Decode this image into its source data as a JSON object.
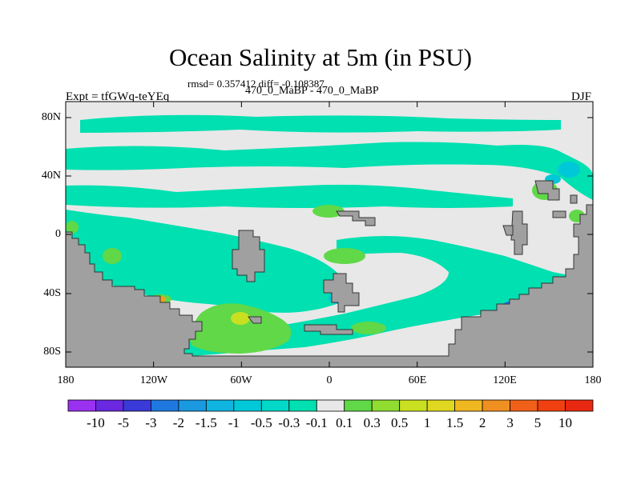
{
  "title": "Ocean Salinity at 5m (in PSU)",
  "rmsd_line": "rmsd= 0.357412 diff= -0.108387",
  "left_label": "Expt = tfGWq-teYEq",
  "center_label": "470_0_MaBP - 470_0_MaBP",
  "right_label": "DJF",
  "map": {
    "lon_ticks": [
      "180",
      "120W",
      "60W",
      "0",
      "60E",
      "120E",
      "180"
    ],
    "lat_ticks": [
      "80N",
      "40N",
      "0",
      "40S",
      "80S"
    ],
    "colors": {
      "land": "#a0a0a0",
      "near_zero": "#e8e8e8",
      "neg_small": "#00e0b0",
      "neg_mid": "#00c8d8",
      "neg_large": "#1e78e0",
      "pos_small": "#60d848",
      "pos_mid": "#c8e020",
      "pos_large": "#f0a020"
    }
  },
  "colorbar": {
    "labels": [
      "-10",
      "-5",
      "-3",
      "-2",
      "-1.5",
      "-1",
      "-0.5",
      "-0.3",
      "-0.1",
      "0.1",
      "0.3",
      "0.5",
      "1",
      "1.5",
      "2",
      "3",
      "5",
      "10"
    ],
    "colors": [
      "#9a30f0",
      "#6a28e0",
      "#3a3ad8",
      "#1e78e0",
      "#1a98e0",
      "#10b4e0",
      "#00c8d8",
      "#00d8c8",
      "#00e0b0",
      "#e8e8e8",
      "#60d848",
      "#90dc30",
      "#c8e020",
      "#e0d820",
      "#f0b820",
      "#f09020",
      "#f06018",
      "#f04010",
      "#e82810"
    ]
  }
}
